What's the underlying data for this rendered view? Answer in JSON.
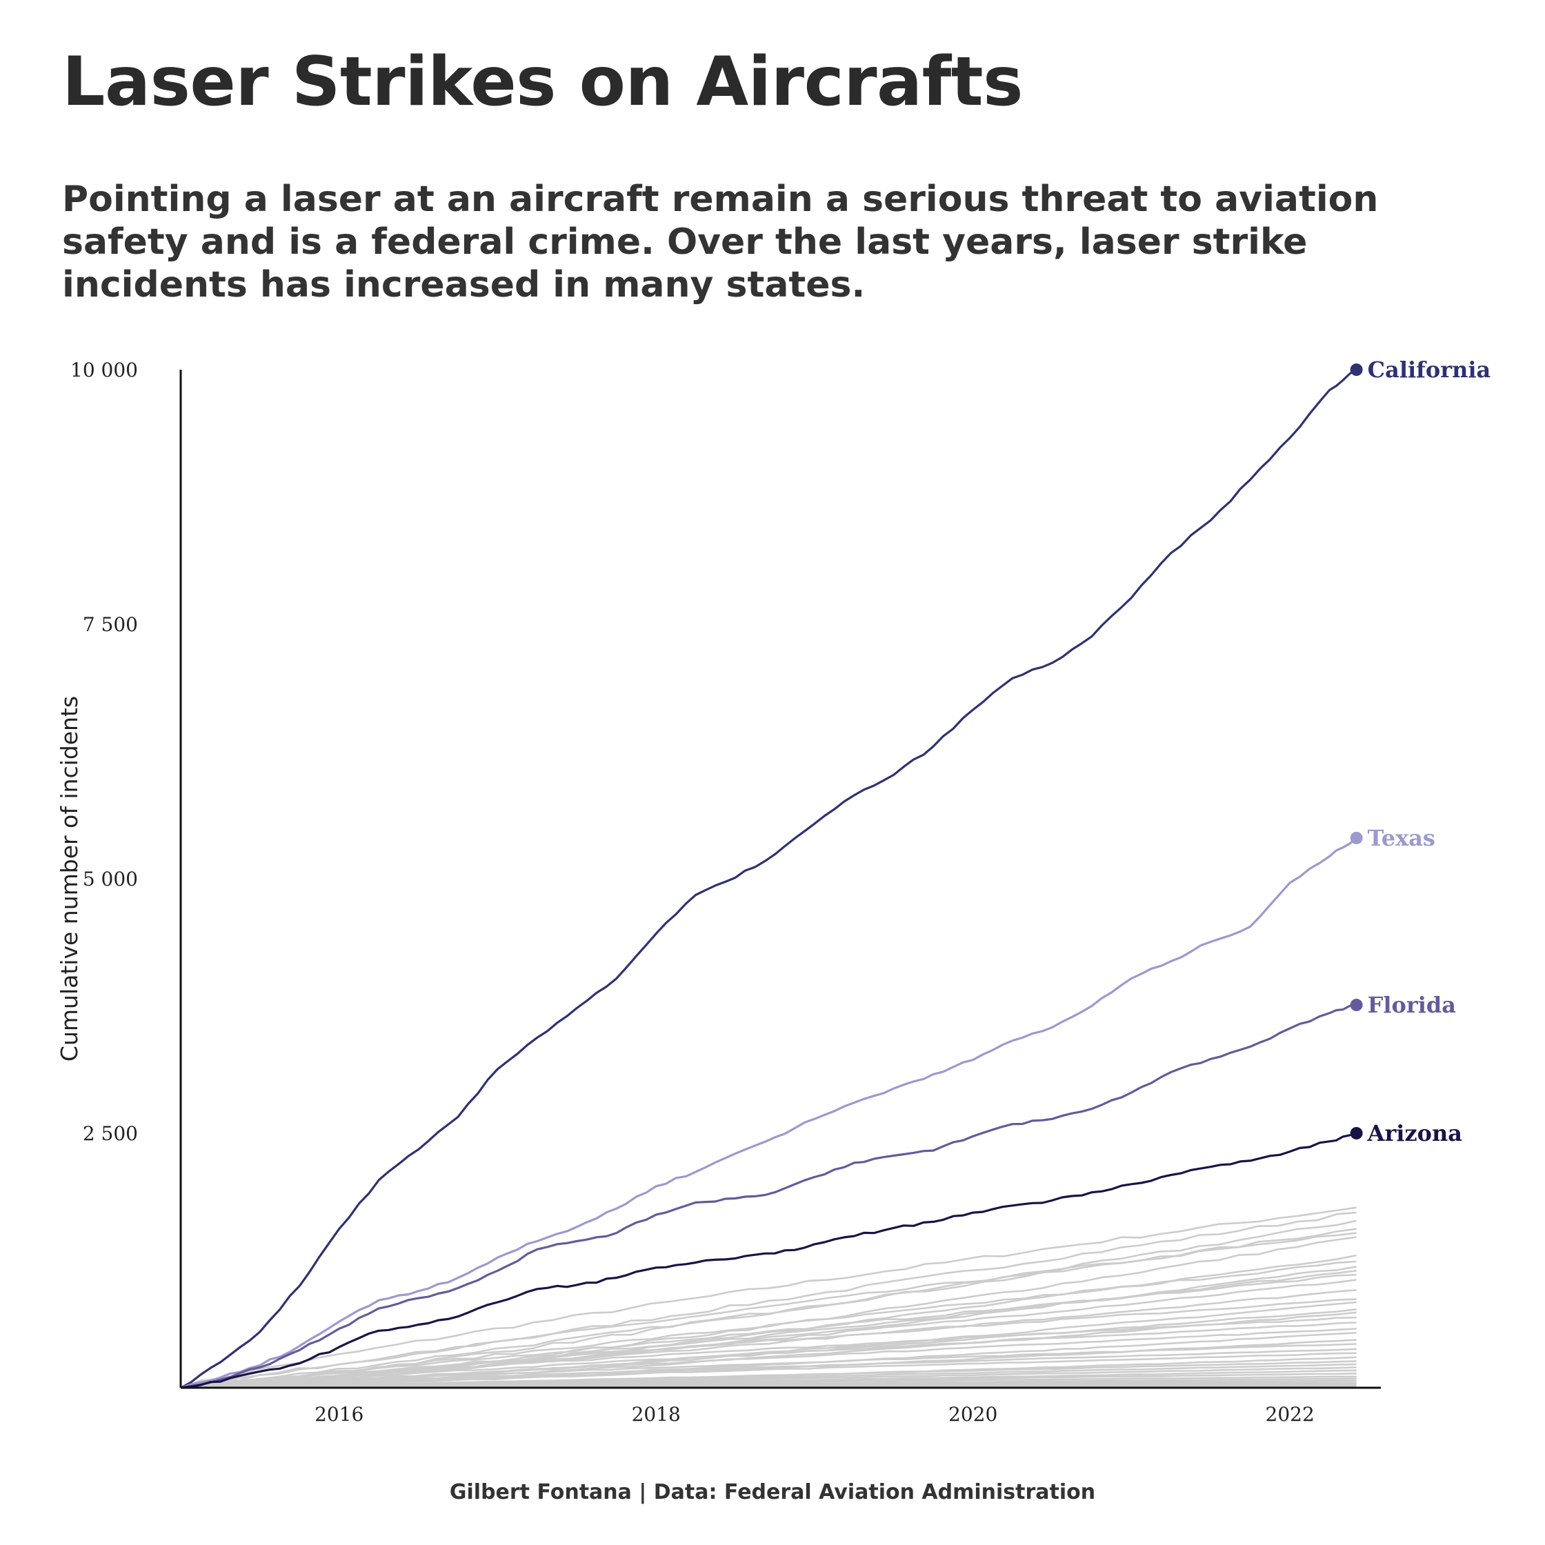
{
  "title": "Laser Strikes on Aircrafts",
  "subtitle": "Pointing a laser at an aircraft remain a serious threat to aviation safety and is a federal crime. Over the last years, laser strike incidents has increased in many states.",
  "caption": "Gilbert Fontana | Data: Federal Aviation Administration",
  "chart_data": {
    "type": "line",
    "title": "Laser Strikes on Aircrafts",
    "xlabel": "",
    "ylabel": "Cumulative number of incidents",
    "xlim": [
      2015.0,
      2022.5
    ],
    "ylim": [
      0,
      10000
    ],
    "x_ticks": [
      2016,
      2018,
      2020,
      2022
    ],
    "x_tick_labels": [
      "2016",
      "2018",
      "2020",
      "2022"
    ],
    "y_ticks": [
      2500,
      5000,
      7500,
      10000
    ],
    "y_tick_labels": [
      "2 500",
      "5 000",
      "7 500",
      "10 000"
    ],
    "grid": false,
    "legend": "direct labels at line ends",
    "highlighted_series": [
      {
        "name": "California",
        "color": "#2e3272",
        "x": [
          2015.0,
          2015.25,
          2015.5,
          2015.75,
          2016.0,
          2016.25,
          2016.5,
          2016.75,
          2017.0,
          2017.25,
          2017.5,
          2017.75,
          2018.0,
          2018.25,
          2018.5,
          2018.75,
          2019.0,
          2019.25,
          2019.5,
          2019.75,
          2020.0,
          2020.25,
          2020.5,
          2020.75,
          2021.0,
          2021.25,
          2021.5,
          2021.75,
          2022.0,
          2022.25,
          2022.42
        ],
        "y": [
          0,
          250,
          550,
          1000,
          1560,
          2040,
          2340,
          2660,
          3130,
          3440,
          3730,
          4020,
          4460,
          4840,
          5010,
          5240,
          5540,
          5820,
          6020,
          6300,
          6660,
          6970,
          7120,
          7380,
          7760,
          8200,
          8520,
          8920,
          9330,
          9800,
          10000
        ]
      },
      {
        "name": "Texas",
        "color": "#9c99cf",
        "x": [
          2015.0,
          2015.25,
          2015.5,
          2015.75,
          2016.0,
          2016.25,
          2016.5,
          2016.75,
          2017.0,
          2017.25,
          2017.5,
          2017.75,
          2018.0,
          2018.25,
          2018.5,
          2018.75,
          2019.0,
          2019.25,
          2019.5,
          2019.75,
          2020.0,
          2020.25,
          2020.5,
          2020.75,
          2021.0,
          2021.25,
          2021.5,
          2021.75,
          2022.0,
          2022.25,
          2022.42
        ],
        "y": [
          0,
          100,
          220,
          410,
          650,
          860,
          950,
          1080,
          1280,
          1440,
          1580,
          1760,
          1980,
          2120,
          2300,
          2460,
          2640,
          2800,
          2940,
          3080,
          3220,
          3410,
          3540,
          3750,
          4020,
          4190,
          4380,
          4530,
          4960,
          5220,
          5400
        ]
      },
      {
        "name": "Florida",
        "color": "#635b9b",
        "x": [
          2015.0,
          2015.25,
          2015.5,
          2015.75,
          2016.0,
          2016.25,
          2016.5,
          2016.75,
          2017.0,
          2017.25,
          2017.5,
          2017.75,
          2018.0,
          2018.25,
          2018.5,
          2018.75,
          2019.0,
          2019.25,
          2019.5,
          2019.75,
          2020.0,
          2020.25,
          2020.5,
          2020.75,
          2021.0,
          2021.25,
          2021.5,
          2021.75,
          2022.0,
          2022.25,
          2022.42
        ],
        "y": [
          0,
          80,
          200,
          370,
          580,
          780,
          880,
          980,
          1150,
          1360,
          1440,
          1520,
          1700,
          1820,
          1860,
          1920,
          2070,
          2210,
          2280,
          2330,
          2470,
          2590,
          2640,
          2740,
          2900,
          3100,
          3230,
          3350,
          3530,
          3680,
          3760
        ]
      },
      {
        "name": "Arizona",
        "color": "#171546",
        "x": [
          2015.0,
          2015.25,
          2015.5,
          2015.75,
          2016.0,
          2016.25,
          2016.5,
          2016.75,
          2017.0,
          2017.25,
          2017.5,
          2017.75,
          2018.0,
          2018.25,
          2018.5,
          2018.75,
          2019.0,
          2019.25,
          2019.5,
          2019.75,
          2020.0,
          2020.25,
          2020.5,
          2020.75,
          2021.0,
          2021.25,
          2021.5,
          2021.75,
          2022.0,
          2022.25,
          2022.42
        ],
        "y": [
          0,
          60,
          160,
          240,
          400,
          560,
          620,
          700,
          840,
          970,
          1010,
          1080,
          1180,
          1230,
          1270,
          1320,
          1410,
          1490,
          1570,
          1630,
          1720,
          1790,
          1840,
          1920,
          2000,
          2090,
          2170,
          2230,
          2320,
          2420,
          2500
        ]
      }
    ],
    "other_series": {
      "color": "#cccccc",
      "description_of_end_values": "remaining states, ending between roughly 0 and 1770 incidents",
      "final_values": [
        1770,
        1720,
        1640,
        1560,
        1520,
        1480,
        1300,
        1240,
        1190,
        1150,
        1110,
        1060,
        960,
        870,
        840,
        770,
        740,
        690,
        640,
        580,
        540,
        470,
        430,
        380,
        340,
        300,
        260,
        230,
        200,
        170,
        140,
        110,
        90,
        70,
        50,
        40,
        30,
        20,
        10
      ]
    }
  }
}
